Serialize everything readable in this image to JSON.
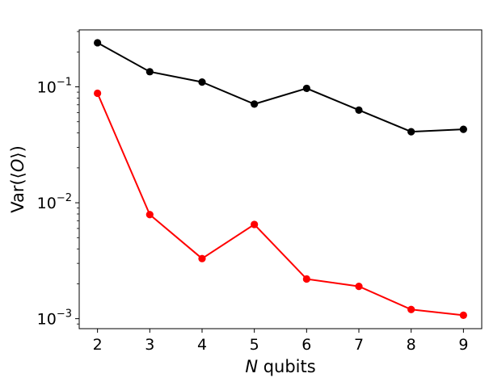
{
  "chart_data": {
    "type": "line",
    "x": [
      2,
      3,
      4,
      5,
      6,
      7,
      8,
      9
    ],
    "xlabel": "N qubits",
    "xlabel_parts": {
      "var": "N",
      "rest": " qubits"
    },
    "ylabel": "Var(⟨O⟩)",
    "ylabel_parts": {
      "pre": "Var(⟨",
      "var": "O",
      "post": "⟩)"
    },
    "yscale": "log",
    "xlim": [
      1.65,
      9.35
    ],
    "ylim": [
      0.00082,
      0.31
    ],
    "xticks": [
      "2",
      "3",
      "4",
      "5",
      "6",
      "7",
      "8",
      "9"
    ],
    "yticks": [
      {
        "value": 0.1,
        "base": "10",
        "exp": "−1"
      },
      {
        "value": 0.01,
        "base": "10",
        "exp": "−2"
      },
      {
        "value": 0.001,
        "base": "10",
        "exp": "−3"
      }
    ],
    "grid": false,
    "series": [
      {
        "color": "#000000",
        "values": [
          0.24,
          0.135,
          0.11,
          0.071,
          0.097,
          0.063,
          0.041,
          0.043
        ]
      },
      {
        "color": "#ff0000",
        "values": [
          0.088,
          0.0079,
          0.0033,
          0.0065,
          0.0022,
          0.0019,
          0.0012,
          0.00107
        ]
      }
    ]
  }
}
